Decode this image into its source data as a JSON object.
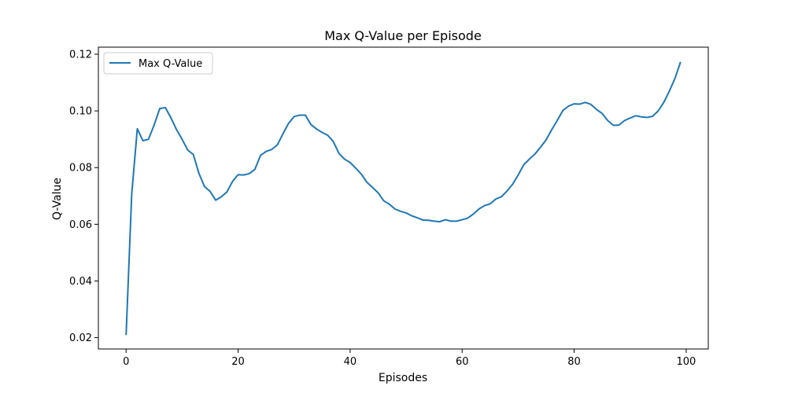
{
  "chart_data": {
    "type": "line",
    "title": "Max Q-Value per Episode",
    "xlabel": "Episodes",
    "ylabel": "Q-Value",
    "xlim": [
      -4.95,
      103.95
    ],
    "ylim": [
      0.016,
      0.1225
    ],
    "xticks": [
      0,
      20,
      40,
      60,
      80,
      100
    ],
    "xtick_labels": [
      "0",
      "20",
      "40",
      "60",
      "80",
      "100"
    ],
    "yticks": [
      0.02,
      0.04,
      0.06,
      0.08,
      0.1,
      0.12
    ],
    "ytick_labels": [
      "0.02",
      "0.04",
      "0.06",
      "0.08",
      "0.10",
      "0.12"
    ],
    "grid": false,
    "legend_position": "top-left",
    "series": [
      {
        "name": "Max Q-Value",
        "color": "#1f77b4",
        "x": [
          0,
          1,
          2,
          3,
          4,
          5,
          6,
          7,
          8,
          9,
          10,
          11,
          12,
          13,
          14,
          15,
          16,
          17,
          18,
          19,
          20,
          21,
          22,
          23,
          24,
          25,
          26,
          27,
          28,
          29,
          30,
          31,
          32,
          33,
          34,
          35,
          36,
          37,
          38,
          39,
          40,
          41,
          42,
          43,
          44,
          45,
          46,
          47,
          48,
          49,
          50,
          51,
          52,
          53,
          54,
          55,
          56,
          57,
          58,
          59,
          60,
          61,
          62,
          63,
          64,
          65,
          66,
          67,
          68,
          69,
          70,
          71,
          72,
          73,
          74,
          75,
          76,
          77,
          78,
          79,
          80,
          81,
          82,
          83,
          84,
          85,
          86,
          87,
          88,
          89,
          90,
          91,
          92,
          93,
          94,
          95,
          96,
          97,
          98,
          99
        ],
        "y": [
          0.0209,
          0.0705,
          0.0937,
          0.0895,
          0.09,
          0.095,
          0.1008,
          0.1012,
          0.0976,
          0.0934,
          0.09,
          0.0862,
          0.0846,
          0.078,
          0.0733,
          0.0716,
          0.0685,
          0.0697,
          0.0714,
          0.0751,
          0.0775,
          0.0774,
          0.0779,
          0.0794,
          0.0843,
          0.0857,
          0.0864,
          0.088,
          0.0919,
          0.0956,
          0.098,
          0.0985,
          0.0985,
          0.0952,
          0.0936,
          0.0924,
          0.0914,
          0.0892,
          0.085,
          0.083,
          0.0818,
          0.0798,
          0.0777,
          0.0748,
          0.073,
          0.0711,
          0.0683,
          0.0671,
          0.0654,
          0.0646,
          0.064,
          0.063,
          0.0623,
          0.0615,
          0.0614,
          0.0611,
          0.0609,
          0.0616,
          0.0611,
          0.0611,
          0.0616,
          0.0622,
          0.0636,
          0.0654,
          0.0666,
          0.0672,
          0.0689,
          0.0697,
          0.0717,
          0.0741,
          0.0774,
          0.081,
          0.083,
          0.0848,
          0.0872,
          0.0898,
          0.0934,
          0.0967,
          0.1002,
          0.1017,
          0.1025,
          0.1024,
          0.103,
          0.1023,
          0.1005,
          0.0991,
          0.0966,
          0.0949,
          0.095,
          0.0966,
          0.0975,
          0.0983,
          0.0979,
          0.0977,
          0.0981,
          0.1,
          0.103,
          0.107,
          0.1115,
          0.1173
        ]
      }
    ]
  }
}
